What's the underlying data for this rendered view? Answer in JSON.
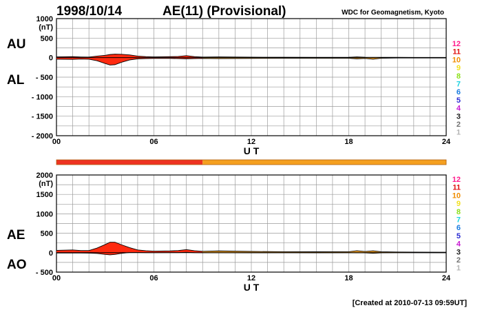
{
  "header": {
    "date": "1998/10/14",
    "title": "AE(11) (Provisional)",
    "source": "WDC for Geomagnetism, Kyoto"
  },
  "footer": {
    "created": "[Created at 2010-07-13 09:59UT]"
  },
  "colors": {
    "fill": "#ff2a10",
    "fill_late": "#f5a020",
    "bar_red": "#ee3322",
    "bar_orange": "#f5a020",
    "grid": "#9a9a9a"
  },
  "station_legend": [
    {
      "label": "12",
      "color": "#ff1a8c"
    },
    {
      "label": "11",
      "color": "#e01010"
    },
    {
      "label": "10",
      "color": "#f08c00"
    },
    {
      "label": "9",
      "color": "#f2e020"
    },
    {
      "label": "8",
      "color": "#8ce01a"
    },
    {
      "label": "7",
      "color": "#1ad2e0"
    },
    {
      "label": "6",
      "color": "#1a7ce0"
    },
    {
      "label": "5",
      "color": "#2a2ad2"
    },
    {
      "label": "4",
      "color": "#c81ad2"
    },
    {
      "label": "3",
      "color": "#202020"
    },
    {
      "label": "2",
      "color": "#707070"
    },
    {
      "label": "1",
      "color": "#b4b4b4"
    }
  ],
  "station_bar": [
    {
      "from": 0,
      "to": 9,
      "stations": 11
    },
    {
      "from": 9,
      "to": 24,
      "stations": 10
    }
  ],
  "chart_data": [
    {
      "type": "area",
      "series": [
        {
          "name": "AU",
          "x": [
            0,
            1,
            1.5,
            2,
            2.5,
            3,
            3.3,
            3.6,
            4,
            4.5,
            5,
            5.5,
            6,
            7,
            7.5,
            8,
            8.5,
            9,
            10,
            12,
            14,
            16,
            18,
            18.5,
            19,
            20,
            21,
            22,
            24
          ],
          "values": [
            20,
            25,
            18,
            15,
            40,
            60,
            80,
            90,
            85,
            70,
            40,
            25,
            20,
            25,
            30,
            50,
            25,
            15,
            20,
            12,
            10,
            8,
            10,
            20,
            10,
            8,
            8,
            6,
            5
          ]
        },
        {
          "name": "AL",
          "x": [
            0,
            1,
            1.5,
            2,
            2.5,
            3,
            3.3,
            3.6,
            4,
            4.5,
            5,
            5.5,
            6,
            7,
            7.5,
            8,
            8.5,
            9,
            10,
            12,
            14,
            16,
            18,
            18.5,
            19,
            19.5,
            20,
            21,
            22,
            24
          ],
          "values": [
            -40,
            -45,
            -35,
            -40,
            -80,
            -150,
            -190,
            -180,
            -120,
            -60,
            -30,
            -25,
            -20,
            -20,
            -25,
            -30,
            -25,
            -20,
            -25,
            -20,
            -15,
            -15,
            -15,
            -30,
            -20,
            -40,
            -15,
            -10,
            -8,
            -8
          ]
        }
      ],
      "xlabel": "U T",
      "ylabel": "(nT)",
      "xlim": [
        0,
        24
      ],
      "ylim": [
        -2000,
        1000
      ],
      "xticks": [
        "00",
        "06",
        "12",
        "18",
        "24"
      ],
      "yticks": [
        "1000",
        "500",
        "0",
        "- 500",
        "- 1000",
        "- 1500",
        "- 2000"
      ],
      "series_labels": [
        "AU",
        "AL"
      ],
      "grid": true
    },
    {
      "type": "area",
      "series": [
        {
          "name": "AE",
          "x": [
            0,
            1,
            1.5,
            2,
            2.5,
            3,
            3.3,
            3.6,
            4,
            4.5,
            5,
            5.5,
            6,
            7,
            7.5,
            8,
            8.5,
            9,
            10,
            12,
            14,
            16,
            18,
            18.5,
            19,
            19.5,
            20,
            21,
            22,
            24
          ],
          "values": [
            60,
            70,
            55,
            55,
            120,
            210,
            270,
            270,
            205,
            130,
            70,
            50,
            40,
            45,
            55,
            80,
            50,
            35,
            45,
            32,
            25,
            23,
            25,
            50,
            30,
            48,
            23,
            18,
            14,
            13
          ]
        },
        {
          "name": "AO",
          "x": [
            0,
            1,
            1.5,
            2,
            2.5,
            3,
            3.3,
            3.6,
            4,
            4.5,
            5,
            5.5,
            6,
            7,
            7.5,
            8,
            8.5,
            9,
            10,
            12,
            14,
            16,
            18,
            18.5,
            19,
            19.5,
            20,
            21,
            22,
            24
          ],
          "values": [
            -10,
            -10,
            -8,
            -12,
            -20,
            -45,
            -55,
            -45,
            -18,
            5,
            5,
            0,
            0,
            2,
            2,
            10,
            0,
            -3,
            -3,
            -4,
            -3,
            -4,
            -3,
            -5,
            -5,
            -16,
            -4,
            -1,
            -1,
            -2
          ]
        }
      ],
      "xlabel": "U T",
      "ylabel": "(nT)",
      "xlim": [
        0,
        24
      ],
      "ylim": [
        -500,
        2000
      ],
      "xticks": [
        "00",
        "06",
        "12",
        "18",
        "24"
      ],
      "yticks": [
        "2000",
        "1500",
        "1000",
        "500",
        "0",
        "- 500"
      ],
      "series_labels": [
        "AE",
        "AO"
      ],
      "grid": true
    }
  ]
}
